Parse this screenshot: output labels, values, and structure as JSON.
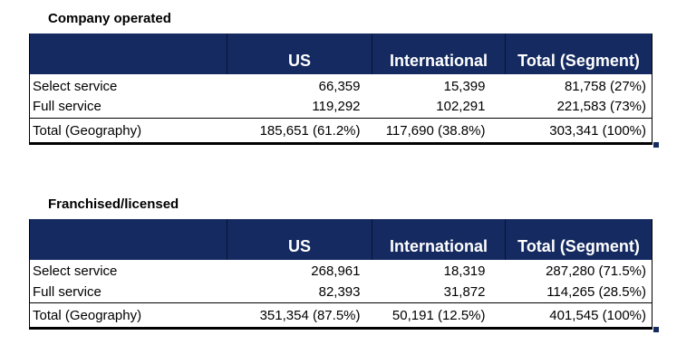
{
  "colors": {
    "header_bg": "#142A60",
    "header_divider": "#081433",
    "header_text": "#FFFFFF",
    "body_text": "#000000",
    "border": "#000000",
    "background": "#FFFFFF",
    "fill_handle": "#142A60"
  },
  "tables": [
    {
      "title": "Company operated",
      "columns": {
        "label": "",
        "us": "US",
        "intl": "International",
        "total": "Total (Segment)"
      },
      "rows": [
        {
          "label": "Select service",
          "us": "66,359",
          "intl": "15,399",
          "total": "81,758 (27%)"
        },
        {
          "label": "Full service",
          "us": "119,292",
          "intl": "102,291",
          "total": "221,583 (73%)"
        }
      ],
      "total_row": {
        "label": "Total (Geography)",
        "us": "185,651 (61.2%)",
        "intl": "117,690 (38.8%)",
        "total": "303,341 (100%)"
      }
    },
    {
      "title": "Franchised/licensed",
      "columns": {
        "label": "",
        "us": "US",
        "intl": "International",
        "total": "Total (Segment)"
      },
      "rows": [
        {
          "label": "Select service",
          "us": "268,961",
          "intl": "18,319",
          "total": "287,280 (71.5%)"
        },
        {
          "label": "Full service",
          "us": "82,393",
          "intl": "31,872",
          "total": "114,265 (28.5%)"
        }
      ],
      "total_row": {
        "label": "Total (Geography)",
        "us": "351,354 (87.5%)",
        "intl": "50,191 (12.5%)",
        "total": "401,545 (100%)"
      }
    }
  ]
}
